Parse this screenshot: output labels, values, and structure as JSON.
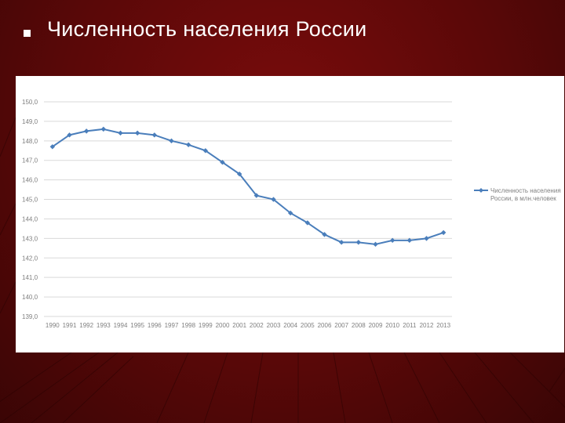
{
  "slide": {
    "title": "Численность населения России",
    "bullet_icon": "square-bullet-icon"
  },
  "colors": {
    "background": "#5a0808",
    "title_text": "#ffffff",
    "series_line": "#4a7ebb",
    "gridline": "#d9d9d9",
    "tick_text": "#808080"
  },
  "chart_data": {
    "type": "line",
    "title": "",
    "xlabel": "",
    "ylabel": "",
    "grid": true,
    "legend_position": "right",
    "ylim": [
      139.0,
      150.0
    ],
    "ytick_labels": [
      "150,0",
      "149,0",
      "148,0",
      "147,0",
      "146,0",
      "145,0",
      "144,0",
      "143,0",
      "142,0",
      "141,0",
      "140,0",
      "139,0"
    ],
    "ytick_values": [
      150,
      149,
      148,
      147,
      146,
      145,
      144,
      143,
      142,
      141,
      140,
      139
    ],
    "categories": [
      "1990",
      "1991",
      "1992",
      "1993",
      "1994",
      "1995",
      "1996",
      "1997",
      "1998",
      "1999",
      "2000",
      "2001",
      "2002",
      "2003",
      "2004",
      "2005",
      "2006",
      "2007",
      "2008",
      "2009",
      "2010",
      "2011",
      "2012",
      "2013"
    ],
    "series": [
      {
        "name": "Численность населения России, в млн.человек",
        "values": [
          147.7,
          148.3,
          148.5,
          148.6,
          148.4,
          148.4,
          148.3,
          148.0,
          147.8,
          147.5,
          146.9,
          146.3,
          145.2,
          145.0,
          144.3,
          143.8,
          143.2,
          142.8,
          142.8,
          142.7,
          142.9,
          142.9,
          143.0,
          143.3
        ],
        "color": "#4a7ebb",
        "marker": "diamond"
      }
    ],
    "legend_lines": [
      "Численность населения",
      "России, в млн.человек"
    ]
  }
}
